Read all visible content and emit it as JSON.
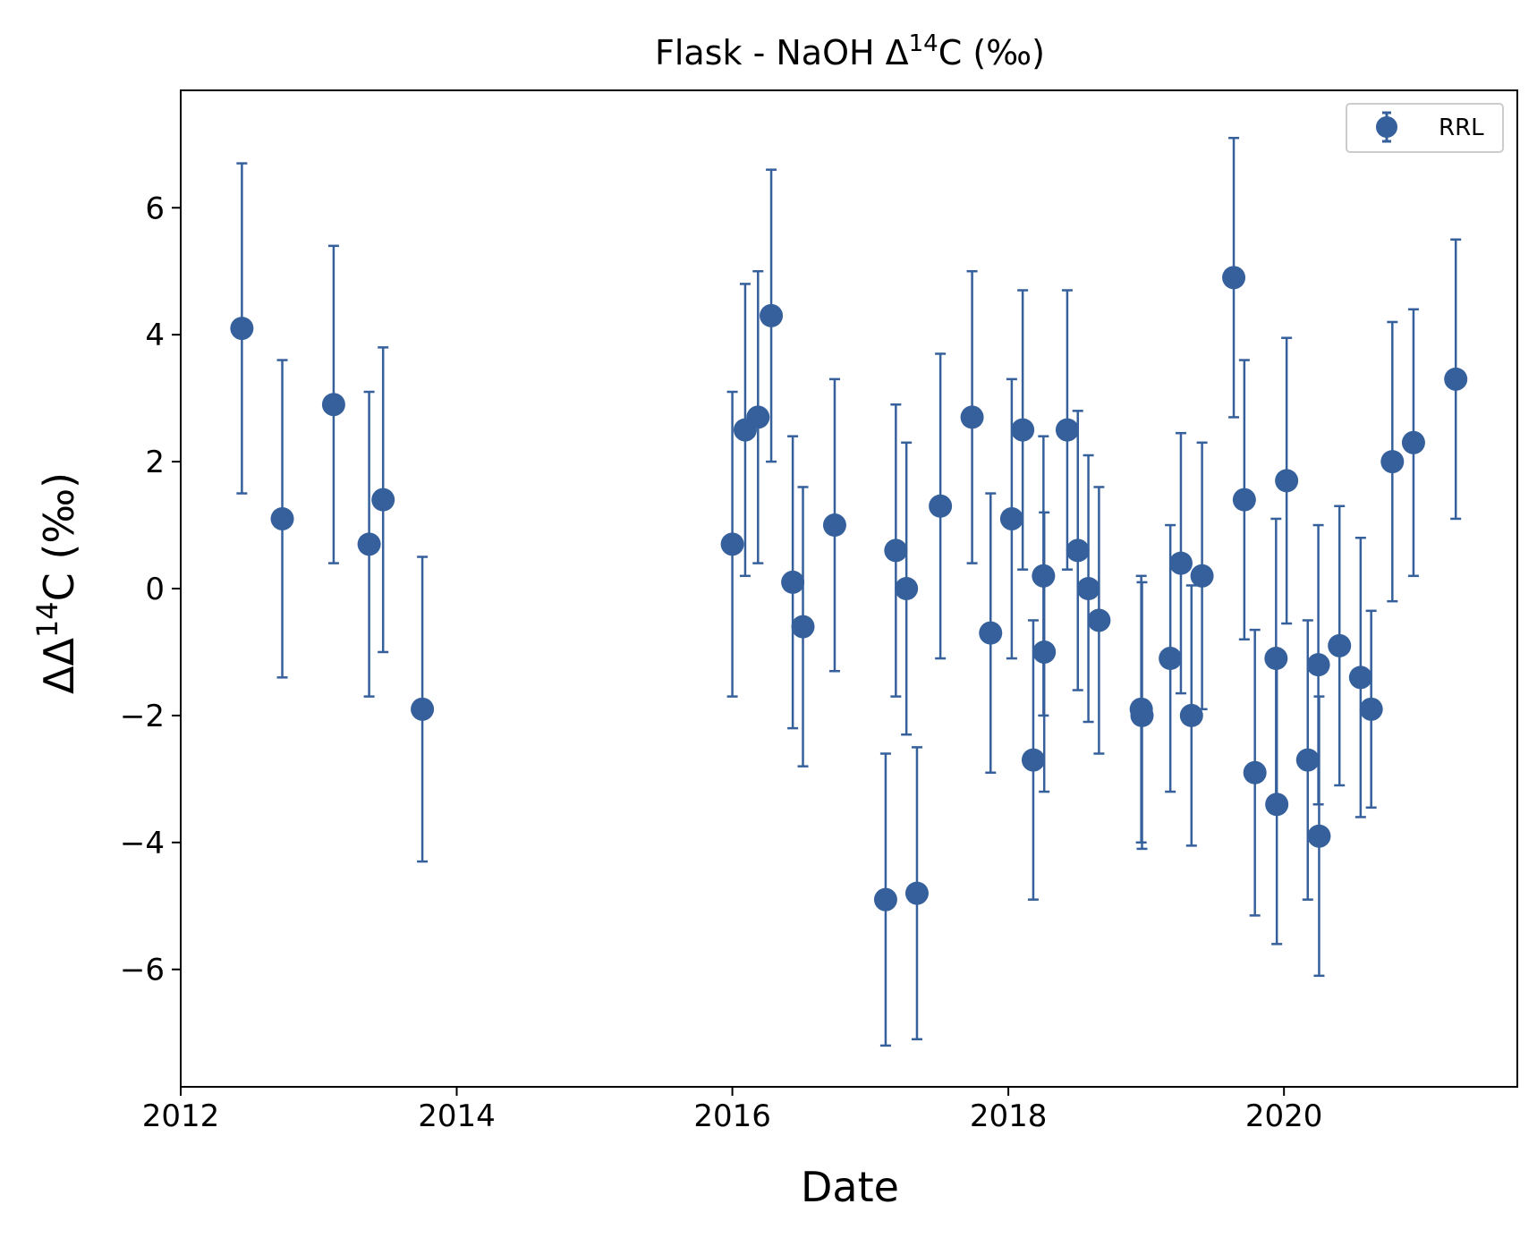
{
  "chart_data": {
    "type": "scatter",
    "title_main": "Flask - NaOH Δ",
    "title_sup": "14",
    "title_tail": "C (‰)",
    "xlabel": "Date",
    "ylabel_main": "ΔΔ",
    "ylabel_sup": "14",
    "ylabel_tail": "C (‰)",
    "xlim": [
      "2012-01-01",
      "2021-09-10"
    ],
    "ylim": [
      -7.85,
      7.85
    ],
    "xticks": [
      {
        "date": "2012-01-01",
        "label": "2012"
      },
      {
        "date": "2014-01-01",
        "label": "2014"
      },
      {
        "date": "2016-01-01",
        "label": "2016"
      },
      {
        "date": "2018-01-01",
        "label": "2018"
      },
      {
        "date": "2020-01-01",
        "label": "2020"
      }
    ],
    "yticks": [
      {
        "value": 6,
        "label": "6"
      },
      {
        "value": 4,
        "label": "4"
      },
      {
        "value": 2,
        "label": "2"
      },
      {
        "value": 0,
        "label": "0"
      },
      {
        "value": -2,
        "label": "−2"
      },
      {
        "value": -4,
        "label": "−4"
      },
      {
        "value": -6,
        "label": "−6"
      }
    ],
    "grid": false,
    "legend_position": "top-right",
    "series": [
      {
        "name": "RRL",
        "color": "#35609c",
        "marker": "circle",
        "points": [
          {
            "x": "2012-06-11",
            "y": 4.1,
            "err": 2.6
          },
          {
            "x": "2012-09-26",
            "y": 1.1,
            "err": 2.5
          },
          {
            "x": "2013-02-09",
            "y": 2.9,
            "err": 2.5
          },
          {
            "x": "2013-05-14",
            "y": 0.7,
            "err": 2.4
          },
          {
            "x": "2013-06-20",
            "y": 1.4,
            "err": 2.4
          },
          {
            "x": "2013-10-02",
            "y": -1.9,
            "err": 2.4
          },
          {
            "x": "2016-01-01",
            "y": 0.7,
            "err": 2.4
          },
          {
            "x": "2016-02-04",
            "y": 2.5,
            "err": 2.3
          },
          {
            "x": "2016-03-09",
            "y": 2.7,
            "err": 2.3
          },
          {
            "x": "2016-04-13",
            "y": 4.3,
            "err": 2.3
          },
          {
            "x": "2016-06-09",
            "y": 0.1,
            "err": 2.3
          },
          {
            "x": "2016-07-06",
            "y": -0.6,
            "err": 2.2
          },
          {
            "x": "2016-09-28",
            "y": 1.0,
            "err": 2.3
          },
          {
            "x": "2017-02-10",
            "y": -4.9,
            "err": 2.3
          },
          {
            "x": "2017-03-09",
            "y": 0.6,
            "err": 2.3
          },
          {
            "x": "2017-04-06",
            "y": 0.0,
            "err": 2.3
          },
          {
            "x": "2017-05-04",
            "y": -4.8,
            "err": 2.3
          },
          {
            "x": "2017-07-05",
            "y": 1.3,
            "err": 2.4
          },
          {
            "x": "2017-09-27",
            "y": 2.7,
            "err": 2.3
          },
          {
            "x": "2017-11-15",
            "y": -0.7,
            "err": 2.2
          },
          {
            "x": "2018-01-10",
            "y": 1.1,
            "err": 2.2
          },
          {
            "x": "2018-02-08",
            "y": 2.5,
            "err": 2.2
          },
          {
            "x": "2018-03-08",
            "y": -2.7,
            "err": 2.2
          },
          {
            "x": "2018-04-04",
            "y": 0.2,
            "err": 2.2
          },
          {
            "x": "2018-04-06",
            "y": -1.0,
            "err": 2.2
          },
          {
            "x": "2018-06-06",
            "y": 2.5,
            "err": 2.2
          },
          {
            "x": "2018-07-04",
            "y": 0.6,
            "err": 2.2
          },
          {
            "x": "2018-08-01",
            "y": 0.0,
            "err": 2.1
          },
          {
            "x": "2018-08-29",
            "y": -0.5,
            "err": 2.1
          },
          {
            "x": "2018-12-19",
            "y": -1.9,
            "err": 2.1
          },
          {
            "x": "2018-12-21",
            "y": -2.0,
            "err": 2.1
          },
          {
            "x": "2019-03-06",
            "y": -1.1,
            "err": 2.1
          },
          {
            "x": "2019-04-03",
            "y": 0.4,
            "err": 2.05
          },
          {
            "x": "2019-05-01",
            "y": -2.0,
            "err": 2.05
          },
          {
            "x": "2019-05-29",
            "y": 0.2,
            "err": 2.1
          },
          {
            "x": "2019-08-21",
            "y": 4.9,
            "err": 2.2
          },
          {
            "x": "2019-09-18",
            "y": 1.4,
            "err": 2.2
          },
          {
            "x": "2019-10-16",
            "y": -2.9,
            "err": 2.25
          },
          {
            "x": "2019-12-11",
            "y": -1.1,
            "err": 2.2
          },
          {
            "x": "2019-12-13",
            "y": -3.4,
            "err": 2.2
          },
          {
            "x": "2020-01-08",
            "y": 1.7,
            "err": 2.25
          },
          {
            "x": "2020-03-04",
            "y": -2.7,
            "err": 2.2
          },
          {
            "x": "2020-04-01",
            "y": -1.2,
            "err": 2.2
          },
          {
            "x": "2020-04-03",
            "y": -3.9,
            "err": 2.2
          },
          {
            "x": "2020-05-27",
            "y": -0.9,
            "err": 2.2
          },
          {
            "x": "2020-07-22",
            "y": -1.4,
            "err": 2.2
          },
          {
            "x": "2020-08-19",
            "y": -1.9,
            "err": 1.55
          },
          {
            "x": "2020-10-14",
            "y": 2.0,
            "err": 2.2
          },
          {
            "x": "2020-12-09",
            "y": 2.3,
            "err": 2.1
          },
          {
            "x": "2021-03-31",
            "y": 3.3,
            "err": 2.2
          }
        ]
      }
    ]
  }
}
